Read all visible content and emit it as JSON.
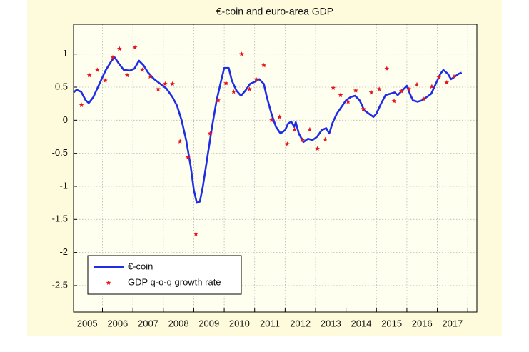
{
  "chart_data": {
    "type": "line",
    "title": "€-coin and euro-area GDP",
    "xlim": [
      2005.05,
      2018.3
    ],
    "ylim": [
      -2.9,
      1.45
    ],
    "yticks": [
      1,
      0.5,
      0,
      -0.5,
      -1,
      -1.5,
      -2,
      -2.5
    ],
    "xticks": [
      {
        "value": 2005.5,
        "label": "2005"
      },
      {
        "value": 2006.5,
        "label": "2006"
      },
      {
        "value": 2007.5,
        "label": "2007"
      },
      {
        "value": 2008.5,
        "label": "2008"
      },
      {
        "value": 2009.5,
        "label": "2009"
      },
      {
        "value": 2010.5,
        "label": "2010"
      },
      {
        "value": 2011.5,
        "label": "2011"
      },
      {
        "value": 2012.5,
        "label": "2012"
      },
      {
        "value": 2013.5,
        "label": "2013"
      },
      {
        "value": 2014.5,
        "label": "2014"
      },
      {
        "value": 2015.5,
        "label": "2015"
      },
      {
        "value": 2016.5,
        "label": "2016"
      },
      {
        "value": 2017.5,
        "label": "2017"
      }
    ],
    "xgrid": [
      2006,
      2007,
      2008,
      2009,
      2010,
      2011,
      2012,
      2013,
      2014,
      2015,
      2016,
      2017,
      2018
    ],
    "grid": true,
    "legend": "lower-left",
    "series": [
      {
        "name": "€-coin",
        "mode": "line",
        "color": "#1f2ee6",
        "x": [
          2005.05,
          2005.15,
          2005.3,
          2005.45,
          2005.55,
          2005.7,
          2005.9,
          2006.1,
          2006.3,
          2006.4,
          2006.55,
          2006.7,
          2006.9,
          2007.05,
          2007.2,
          2007.35,
          2007.5,
          2007.7,
          2007.9,
          2008.1,
          2008.3,
          2008.45,
          2008.6,
          2008.75,
          2008.9,
          2009.0,
          2009.1,
          2009.2,
          2009.3,
          2009.45,
          2009.6,
          2009.75,
          2009.9,
          2010.0,
          2010.15,
          2010.25,
          2010.4,
          2010.55,
          2010.7,
          2010.85,
          2011.0,
          2011.15,
          2011.3,
          2011.4,
          2011.55,
          2011.7,
          2011.85,
          2012.0,
          2012.1,
          2012.2,
          2012.3,
          2012.35,
          2012.45,
          2012.6,
          2012.75,
          2012.9,
          2013.05,
          2013.2,
          2013.35,
          2013.45,
          2013.55,
          2013.7,
          2013.85,
          2014.0,
          2014.15,
          2014.3,
          2014.45,
          2014.6,
          2014.75,
          2014.9,
          2015.0,
          2015.15,
          2015.3,
          2015.45,
          2015.6,
          2015.7,
          2015.85,
          2016.0,
          2016.1,
          2016.2,
          2016.35,
          2016.5,
          2016.65,
          2016.8,
          2016.95,
          2017.1,
          2017.2,
          2017.35,
          2017.45,
          2017.55,
          2017.7,
          2017.8
        ],
        "values": [
          0.42,
          0.46,
          0.43,
          0.3,
          0.26,
          0.35,
          0.55,
          0.75,
          0.9,
          0.95,
          0.85,
          0.76,
          0.75,
          0.78,
          0.9,
          0.83,
          0.72,
          0.62,
          0.55,
          0.48,
          0.35,
          0.22,
          0.0,
          -0.3,
          -0.7,
          -1.05,
          -1.25,
          -1.23,
          -1.0,
          -0.55,
          -0.1,
          0.3,
          0.6,
          0.79,
          0.79,
          0.6,
          0.45,
          0.37,
          0.45,
          0.55,
          0.58,
          0.62,
          0.55,
          0.35,
          0.1,
          -0.1,
          -0.2,
          -0.15,
          -0.05,
          -0.02,
          -0.1,
          -0.03,
          -0.2,
          -0.33,
          -0.28,
          -0.3,
          -0.25,
          -0.15,
          -0.12,
          -0.2,
          -0.05,
          0.1,
          0.2,
          0.3,
          0.35,
          0.37,
          0.3,
          0.15,
          0.1,
          0.05,
          0.1,
          0.25,
          0.38,
          0.4,
          0.42,
          0.38,
          0.45,
          0.52,
          0.4,
          0.3,
          0.28,
          0.3,
          0.35,
          0.4,
          0.55,
          0.7,
          0.76,
          0.7,
          0.62,
          0.65,
          0.7,
          0.72
        ]
      },
      {
        "name": "GDP q-o-q growth rate",
        "mode": "markers",
        "color": "#e8141e",
        "x": [
          2005.31,
          2005.57,
          2005.83,
          2006.09,
          2006.34,
          2006.56,
          2006.81,
          2007.07,
          2007.31,
          2007.57,
          2007.83,
          2008.06,
          2008.3,
          2008.55,
          2008.81,
          2009.07,
          2009.54,
          2009.8,
          2010.06,
          2010.31,
          2010.57,
          2010.83,
          2011.05,
          2011.3,
          2011.56,
          2011.82,
          2012.07,
          2012.31,
          2012.57,
          2012.81,
          2013.06,
          2013.32,
          2013.58,
          2013.82,
          2014.07,
          2014.32,
          2014.57,
          2014.83,
          2015.09,
          2015.34,
          2015.58,
          2015.82,
          2016.07,
          2016.33,
          2016.56,
          2016.82,
          2017.05,
          2017.31,
          2017.55
        ],
        "values": [
          0.23,
          0.68,
          0.76,
          0.6,
          0.95,
          1.08,
          0.68,
          1.1,
          0.76,
          0.66,
          0.47,
          0.55,
          0.55,
          -0.32,
          -0.56,
          -1.72,
          -0.2,
          0.3,
          0.56,
          0.43,
          1.0,
          0.47,
          0.62,
          0.83,
          0.0,
          0.05,
          -0.36,
          -0.14,
          -0.3,
          -0.14,
          -0.43,
          -0.29,
          0.49,
          0.38,
          0.28,
          0.45,
          0.17,
          0.42,
          0.47,
          0.78,
          0.29,
          0.44,
          0.47,
          0.54,
          0.32,
          0.51,
          0.65,
          0.57,
          0.66
        ]
      }
    ]
  }
}
